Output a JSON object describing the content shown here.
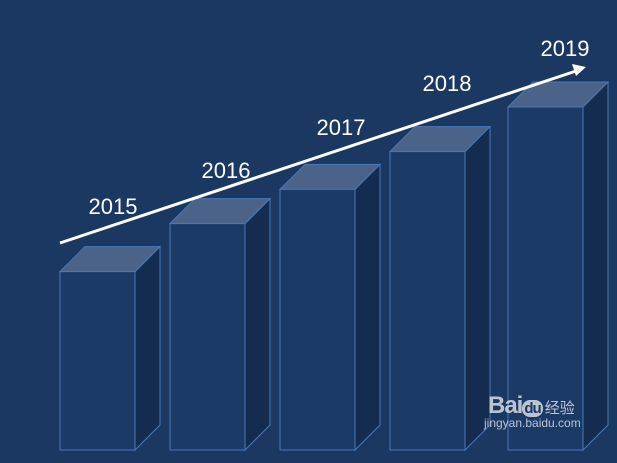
{
  "chart_data": {
    "type": "bar",
    "style": "3d-columns-with-trend-arrow",
    "categories": [
      "2015",
      "2016",
      "2017",
      "2018",
      "2019"
    ],
    "values": [
      52,
      66,
      76,
      87,
      100
    ],
    "value_note_scale": "relative",
    "trend": "increasing",
    "title": "",
    "xlabel": "",
    "ylabel": "",
    "grid": false,
    "colors": {
      "background": "#1b3862",
      "front": "#1c3a66",
      "top": "#4b6389",
      "side": "#142c50",
      "edge": "#4a78b8",
      "arrow": "#ffffff",
      "label": "#ffffff"
    }
  },
  "watermark": {
    "brand": "Bai",
    "brand2": "du",
    "cn": "经验",
    "url": "jingyan.baidu.com"
  }
}
